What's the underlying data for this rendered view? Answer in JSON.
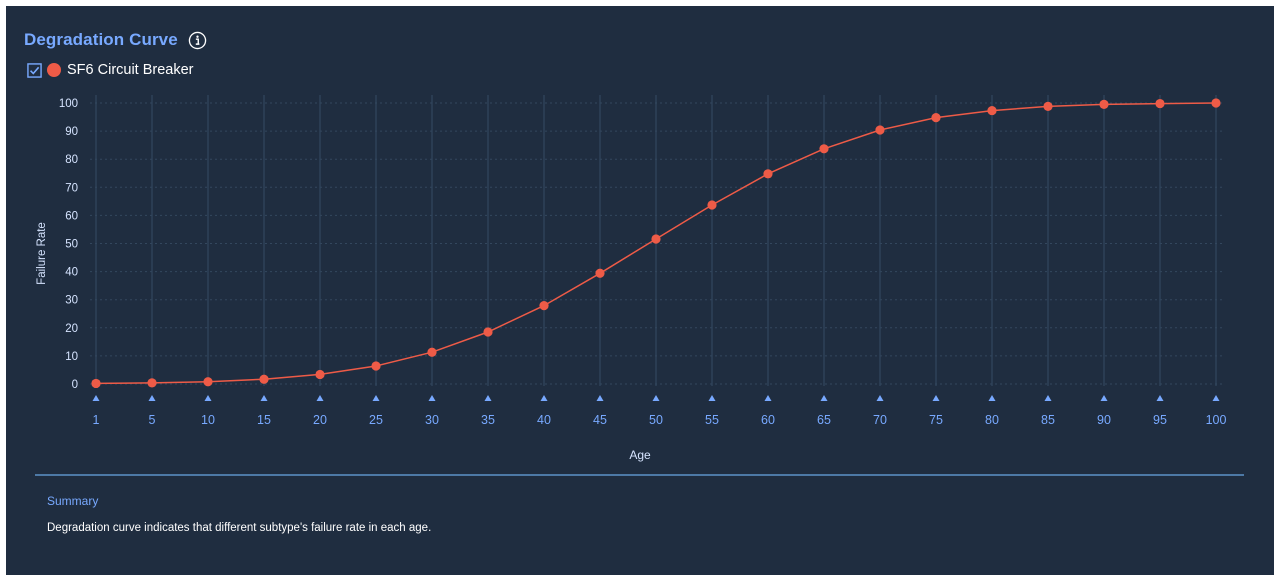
{
  "header": {
    "title": "Degradation Curve",
    "info_icon": "info-icon"
  },
  "legend": {
    "checked": true,
    "label": "SF6 Circuit Breaker",
    "color": "#ee5b47"
  },
  "chart_data": {
    "type": "line",
    "xlabel": "Age",
    "ylabel": "Failure Rate",
    "categories": [
      "1",
      "5",
      "10",
      "15",
      "20",
      "25",
      "30",
      "35",
      "40",
      "45",
      "50",
      "55",
      "60",
      "65",
      "70",
      "75",
      "80",
      "85",
      "90",
      "95",
      "100"
    ],
    "ylim": [
      0,
      100
    ],
    "yticks": [
      "0",
      "10",
      "20",
      "30",
      "40",
      "50",
      "60",
      "70",
      "80",
      "90",
      "100"
    ],
    "grid": "dotted-horizontal-and-vertical",
    "series": [
      {
        "name": "SF6 Circuit Breaker",
        "color": "#ee5b47",
        "values": [
          0.2,
          0.4,
          0.8,
          1.7,
          3.4,
          6.4,
          11.3,
          18.5,
          27.9,
          39.4,
          51.6,
          63.7,
          74.8,
          83.7,
          90.4,
          94.8,
          97.3,
          98.8,
          99.5,
          99.8,
          100
        ]
      }
    ],
    "colors": {
      "axis_text": "#d6e4ff",
      "tick_label": "#78a9ff",
      "grid": "#33475e",
      "marker": "#78a9ff"
    }
  },
  "summary": {
    "title": "Summary",
    "text": "Degradation curve indicates that different subtype's failure rate in each age."
  }
}
